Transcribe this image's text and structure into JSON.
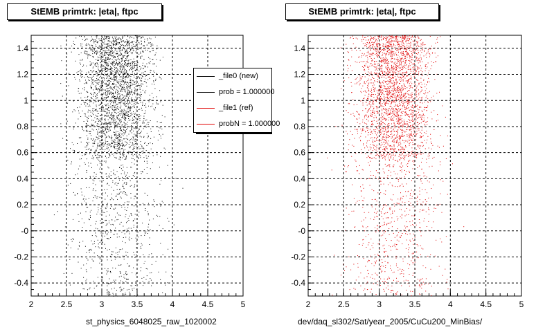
{
  "panels": [
    {
      "title": "StEMB primtrk: |eta|, ftpc",
      "xlabel": "st_physics_6048025_raw_1020002",
      "marker_color": "#000000"
    },
    {
      "title": "StEMB primtrk: |eta|, ftpc",
      "xlabel": "dev/daq_sl302/Sat/year_2005/CuCu200_MinBias/",
      "marker_color": "#e00000"
    }
  ],
  "legend": {
    "entries": [
      {
        "label": "_file0 (new)",
        "color": "#000000"
      },
      {
        "label": "prob = 1.000000",
        "color": "#000000"
      },
      {
        "label": "_file1 (ref)",
        "color": "#e00000"
      },
      {
        "label": "probN = 1.000000",
        "color": "#e00000"
      }
    ]
  },
  "chart_data": [
    {
      "type": "scatter",
      "title": "StEMB primtrk: |eta|, ftpc",
      "xlabel": "st_physics_6048025_raw_1020002",
      "ylabel": "",
      "xlim": [
        2,
        5
      ],
      "ylim": [
        -0.5,
        1.5
      ],
      "xticks": [
        "2",
        "2.5",
        "3",
        "3.5",
        "4",
        "4.5",
        "5"
      ],
      "yticks": [
        "-0.4",
        "-0.2",
        "-0",
        "0.2",
        "0.4",
        "0.6",
        "0.8",
        "1",
        "1.2",
        "1.4"
      ],
      "grid": true,
      "series": [
        {
          "name": "_file0 (new)",
          "x_range": [
            2.2,
            4.2
          ],
          "y_range": [
            -0.5,
            1.5
          ],
          "dense_region": {
            "x": [
              2.6,
              3.9
            ],
            "y": [
              0.55,
              1.5
            ]
          }
        }
      ]
    },
    {
      "type": "scatter",
      "title": "StEMB primtrk: |eta|, ftpc",
      "xlabel": "dev/daq_sl302/Sat/year_2005/CuCu200_MinBias/",
      "ylabel": "",
      "xlim": [
        2,
        5
      ],
      "ylim": [
        -0.5,
        1.5
      ],
      "xticks": [
        "2",
        "2.5",
        "3",
        "3.5",
        "4",
        "4.5",
        "5"
      ],
      "yticks": [
        "-0.4",
        "-0.2",
        "-0",
        "0.2",
        "0.4",
        "0.6",
        "0.8",
        "1",
        "1.2",
        "1.4"
      ],
      "grid": true,
      "series": [
        {
          "name": "_file1 (ref)",
          "x_range": [
            2.3,
            4.3
          ],
          "y_range": [
            -0.5,
            1.5
          ],
          "dense_region": {
            "x": [
              2.6,
              3.9
            ],
            "y": [
              0.55,
              1.5
            ]
          }
        }
      ]
    }
  ]
}
